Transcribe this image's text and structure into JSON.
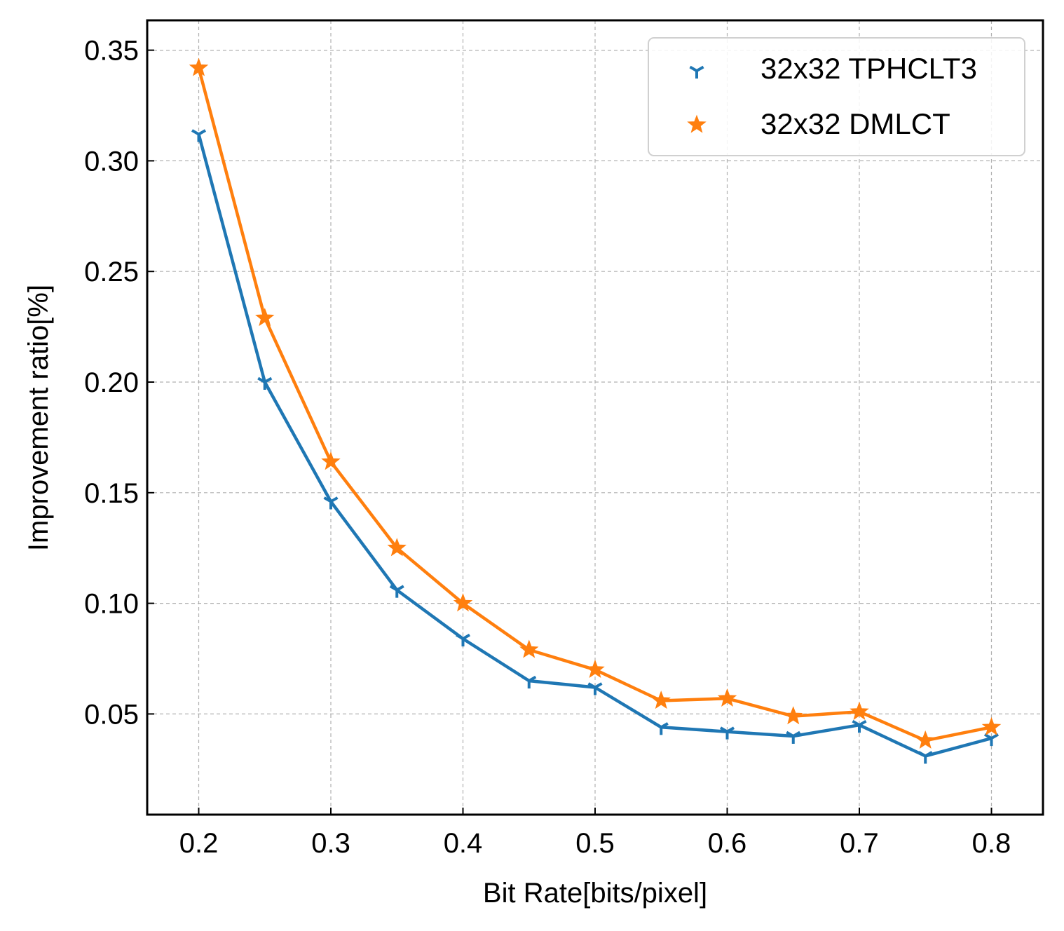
{
  "chart_data": {
    "type": "line",
    "title": "",
    "xlabel": "Bit Rate[bits/pixel]",
    "ylabel": "Improvement ratio[%]",
    "xlim": [
      0.161,
      0.839
    ],
    "ylim": [
      0.0045,
      0.3635
    ],
    "x_ticks": [
      0.2,
      0.3,
      0.4,
      0.5,
      0.6,
      0.7,
      0.8
    ],
    "x_tick_labels": [
      "0.2",
      "0.3",
      "0.4",
      "0.5",
      "0.6",
      "0.7",
      "0.8"
    ],
    "y_ticks": [
      0.05,
      0.1,
      0.15,
      0.2,
      0.25,
      0.3,
      0.35
    ],
    "y_tick_labels": [
      "0.05",
      "0.10",
      "0.15",
      "0.20",
      "0.25",
      "0.30",
      "0.35"
    ],
    "grid": true,
    "legend_position": "top-right",
    "x": [
      0.2,
      0.25,
      0.3,
      0.35,
      0.4,
      0.45,
      0.5,
      0.55,
      0.6,
      0.65,
      0.7,
      0.75,
      0.8
    ],
    "series": [
      {
        "name": "32x32 TPHCLT3",
        "color": "#1f77b4",
        "marker": "tri-down",
        "values": [
          0.312,
          0.2,
          0.146,
          0.106,
          0.084,
          0.065,
          0.062,
          0.044,
          0.042,
          0.04,
          0.045,
          0.031,
          0.039
        ]
      },
      {
        "name": "32x32 DMLCT",
        "color": "#ff7f0e",
        "marker": "star",
        "values": [
          0.342,
          0.229,
          0.164,
          0.125,
          0.1,
          0.079,
          0.07,
          0.056,
          0.057,
          0.049,
          0.051,
          0.038,
          0.044
        ]
      }
    ]
  }
}
